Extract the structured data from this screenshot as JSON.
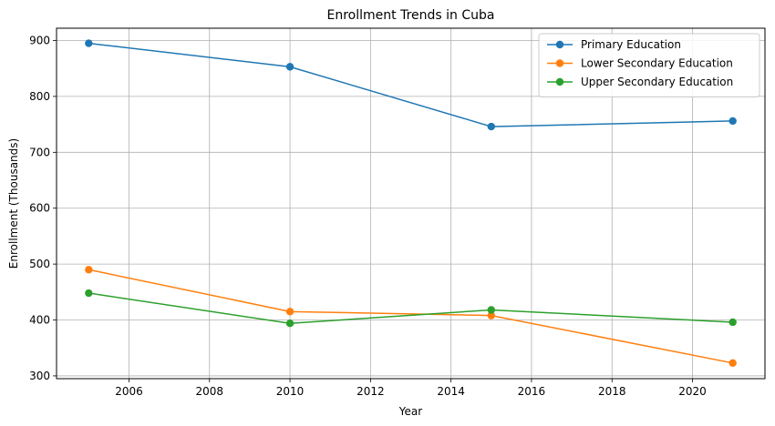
{
  "chart_data": {
    "type": "line",
    "title": "Enrollment Trends in Cuba",
    "xlabel": "Year",
    "ylabel": "Enrollment (Thousands)",
    "x": [
      2005,
      2010,
      2015,
      2021
    ],
    "xlim": [
      2004.2,
      2021.8
    ],
    "ylim": [
      295,
      922
    ],
    "xticks": [
      2006,
      2008,
      2010,
      2012,
      2014,
      2016,
      2018,
      2020
    ],
    "yticks": [
      300,
      400,
      500,
      600,
      700,
      800,
      900
    ],
    "grid": true,
    "legend_position": "top-right",
    "markers": true,
    "series": [
      {
        "name": "Primary Education",
        "color": "#1f77b4",
        "values": [
          895,
          853,
          746,
          756
        ]
      },
      {
        "name": "Lower Secondary Education",
        "color": "#ff7f0e",
        "values": [
          490,
          415,
          408,
          323
        ]
      },
      {
        "name": "Upper Secondary Education",
        "color": "#2ca02c",
        "values": [
          448,
          394,
          418,
          396
        ]
      }
    ]
  }
}
